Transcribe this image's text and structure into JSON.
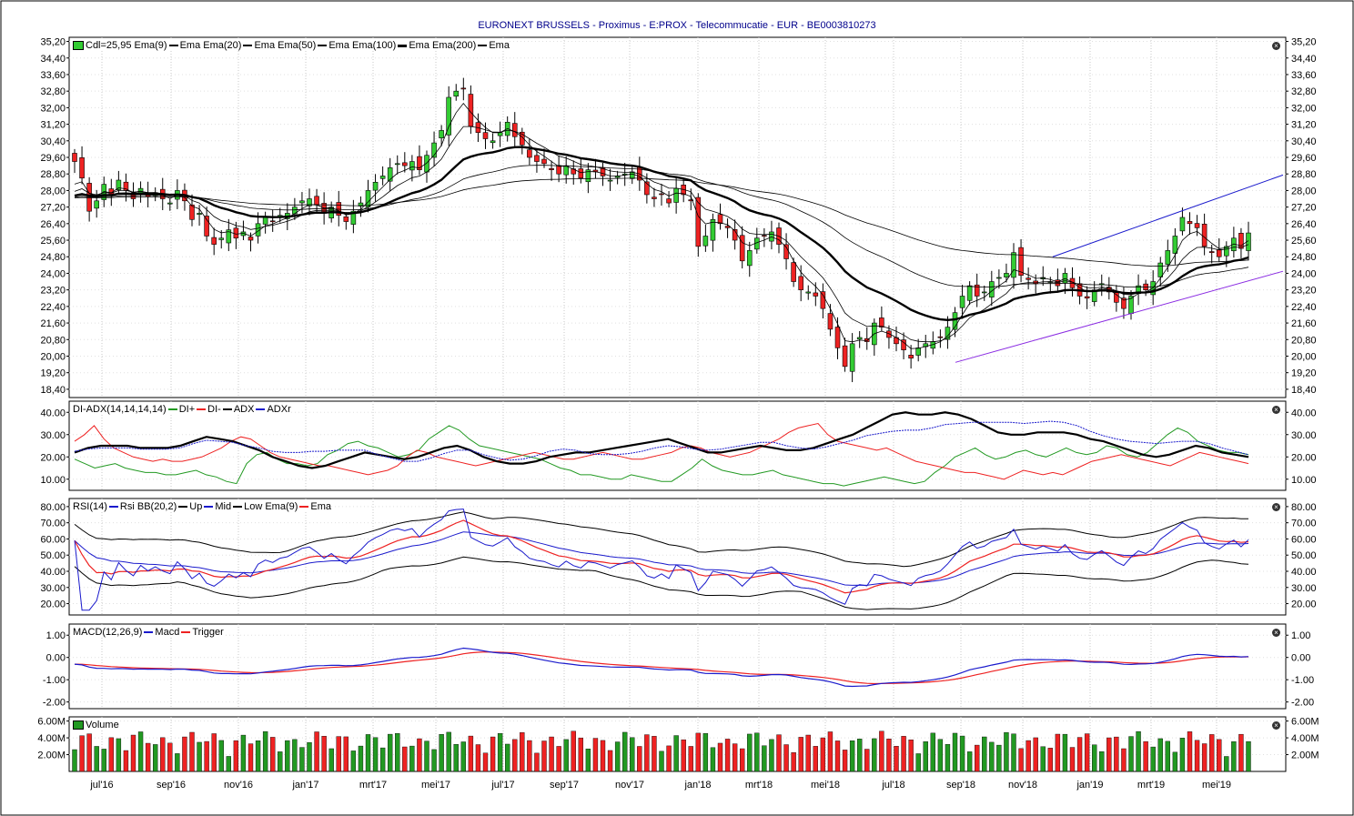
{
  "title": "EURONEXT BRUSSELS - Proximus - E:PROX - Telecommucatie - EUR - BE0003810273",
  "months": [
    "jul'16",
    "sep'16",
    "nov'16",
    "jan'17",
    "mrt'17",
    "mei'17",
    "jul'17",
    "sep'17",
    "nov'17",
    "jan'18",
    "mrt'18",
    "mei'18",
    "jul'18",
    "sep'18",
    "nov'18",
    "jan'19",
    "mrt'19",
    "mei'19"
  ],
  "legends": {
    "price": {
      "cdl": "Cdl=25,95",
      "items": [
        "Ema(9)",
        "Ema",
        "Ema(20)",
        "Ema",
        "Ema(50)",
        "Ema",
        "Ema(100)",
        "Ema",
        "Ema(200)",
        "Ema"
      ]
    },
    "adx": {
      "name": "DI-ADX(14,14,14,14)",
      "items": [
        "DI+",
        "DI-",
        "ADX",
        "ADXr"
      ]
    },
    "rsi": {
      "name": "RSI(14)",
      "items": [
        "Rsi",
        "BB(20,2)",
        "Up",
        "Mid",
        "Low",
        "Ema(9)",
        "Ema"
      ]
    },
    "macd": {
      "name": "MACD(12,26,9)",
      "items": [
        "Macd",
        "Trigger"
      ]
    },
    "volume": {
      "name": "Volume"
    }
  },
  "axes": {
    "price": [
      "35,20",
      "34,40",
      "33,60",
      "32,80",
      "32,00",
      "31,20",
      "30,40",
      "29,60",
      "28,80",
      "28,00",
      "27,20",
      "26,40",
      "25,60",
      "24,80",
      "24,00",
      "23,20",
      "22,40",
      "21,60",
      "20,80",
      "20,00",
      "19,20",
      "18,40"
    ],
    "adx": [
      "40.00",
      "30.00",
      "20.00",
      "10.00"
    ],
    "rsi": [
      "80.00",
      "70.00",
      "60.00",
      "50.00",
      "40.00",
      "30.00",
      "20.00"
    ],
    "macd": [
      "1.00",
      "0.00",
      "-1.00",
      "-2.00"
    ],
    "volume": [
      "6.00M",
      "4.00M",
      "2.00M"
    ]
  },
  "colors": {
    "up": "#33cc33",
    "down": "#ee2222",
    "blue": "#1a1acc",
    "purple": "#8a2be2",
    "green": "#229922",
    "red": "#ee2222",
    "black": "#000000",
    "title": "#00008b"
  },
  "chart_data": [
    {
      "type": "candlestick",
      "panel": "price",
      "ylim": [
        18.0,
        35.4
      ],
      "x_weeks": "weekly candles, jul 2016 - mei 2019",
      "close": [
        29.4,
        28.6,
        27.0,
        27.5,
        28.3,
        27.8,
        28.5,
        28.0,
        27.6,
        28.1,
        27.7,
        27.9,
        27.6,
        27.4,
        28.0,
        27.5,
        26.6,
        26.9,
        25.8,
        25.4,
        25.7,
        26.1,
        25.7,
        26.0,
        25.6,
        26.4,
        26.7,
        26.5,
        26.8,
        26.9,
        27.2,
        27.5,
        27.6,
        27.3,
        26.9,
        27.2,
        26.8,
        26.5,
        27.0,
        27.4,
        28.0,
        28.4,
        28.7,
        29.1,
        29.3,
        29.2,
        29.4,
        29.0,
        29.7,
        30.3,
        30.9,
        32.5,
        32.8,
        32.9,
        31.1,
        30.8,
        30.5,
        30.4,
        30.8,
        31.3,
        30.6,
        30.2,
        29.6,
        29.4,
        29.3,
        29.0,
        28.8,
        29.2,
        28.8,
        28.6,
        29.0,
        28.9,
        28.7,
        28.5,
        28.7,
        28.8,
        28.9,
        28.5,
        27.8,
        27.6,
        27.8,
        27.4,
        28.1,
        27.8,
        27.5,
        25.3,
        25.8,
        26.6,
        26.4,
        26.2,
        25.6,
        24.6,
        25.1,
        25.7,
        25.8,
        26.0,
        25.4,
        24.7,
        23.6,
        23.2,
        23.1,
        22.9,
        22.3,
        21.3,
        20.4,
        19.5,
        20.6,
        20.9,
        20.7,
        21.6,
        21.4,
        20.9,
        20.6,
        20.3,
        19.9,
        20.4,
        20.6,
        20.7,
        20.9,
        21.4,
        22.1,
        22.9,
        23.4,
        22.9,
        23.1,
        23.6,
        23.8,
        24.0,
        25.0,
        23.9,
        23.7,
        23.5,
        23.8,
        23.6,
        23.4,
        24.0,
        23.3,
        22.9,
        22.8,
        23.2,
        23.5,
        23.1,
        22.6,
        22.3,
        22.9,
        23.4,
        23.2,
        23.6,
        24.5,
        25.1,
        25.8,
        26.7,
        26.4,
        26.2,
        25.3,
        25.0,
        24.8,
        25.3,
        25.7,
        25.2,
        25.95
      ],
      "ema": [
        {
          "name": "Ema(9)",
          "color": "#000000",
          "width": 0.8
        },
        {
          "name": "Ema(20)",
          "color": "#000000",
          "width": 0.8
        },
        {
          "name": "Ema(50)",
          "color": "#000000",
          "width": 2.4
        },
        {
          "name": "Ema(100)",
          "color": "#000000",
          "width": 0.8
        },
        {
          "name": "Ema(200)",
          "color": "#000000",
          "width": 0.8
        }
      ],
      "trendlines": [
        {
          "color": "#1a1acc",
          "from": [
            1157,
            24.8
          ],
          "to": [
            1410,
            28.75
          ]
        },
        {
          "color": "#8a2be2",
          "from": [
            1050,
            19.7
          ],
          "to": [
            1410,
            24.1
          ]
        }
      ]
    },
    {
      "type": "line",
      "panel": "adx",
      "ylim": [
        5,
        45
      ],
      "series": [
        {
          "name": "DI+",
          "color": "#229922",
          "values": [
            19,
            17,
            15,
            16,
            17,
            15,
            14,
            13,
            13,
            12,
            12,
            13,
            14,
            12,
            11,
            9,
            8,
            17,
            21,
            22,
            19,
            17,
            17,
            16,
            17,
            21,
            23,
            26,
            27,
            25,
            24,
            22,
            20,
            21,
            23,
            28,
            31,
            34,
            32,
            28,
            25,
            24,
            23,
            22,
            21,
            20,
            19,
            17,
            15,
            14,
            12,
            12,
            11,
            10,
            10,
            12,
            11,
            10,
            9,
            9,
            12,
            15,
            19,
            16,
            14,
            13,
            12,
            12,
            13,
            14,
            12,
            11,
            10,
            9,
            8,
            8,
            7,
            8,
            9,
            10,
            11,
            10,
            9,
            8,
            9,
            13,
            16,
            20,
            22,
            24,
            21,
            19,
            20,
            22,
            23,
            21,
            20,
            22,
            24,
            22,
            21,
            22,
            25,
            24,
            21,
            20,
            22,
            26,
            30,
            33,
            31,
            27,
            25,
            23,
            22,
            22,
            21
          ]
        },
        {
          "name": "DI-",
          "color": "#ee2222",
          "values": [
            27,
            30,
            34,
            28,
            24,
            22,
            20,
            19,
            18,
            19,
            18,
            18,
            19,
            20,
            22,
            24,
            27,
            29,
            28,
            25,
            22,
            20,
            19,
            18,
            17,
            16,
            16,
            15,
            14,
            13,
            12,
            13,
            14,
            16,
            20,
            23,
            22,
            20,
            19,
            18,
            17,
            16,
            17,
            18,
            19,
            20,
            21,
            22,
            21,
            20,
            19,
            19,
            20,
            21,
            22,
            21,
            20,
            19,
            19,
            20,
            21,
            22,
            24,
            25,
            24,
            22,
            21,
            20,
            21,
            22,
            24,
            26,
            28,
            31,
            33,
            34,
            35,
            30,
            27,
            26,
            25,
            24,
            23,
            24,
            22,
            20,
            18,
            17,
            16,
            15,
            14,
            13,
            13,
            12,
            11,
            10,
            12,
            14,
            13,
            12,
            13,
            12,
            14,
            16,
            18,
            19,
            20,
            21,
            20,
            19,
            18,
            17,
            16,
            18,
            20,
            22,
            21,
            20,
            19,
            18,
            17
          ]
        }
      ]
    },
    {
      "type": "line",
      "panel": "rsi",
      "ylim": [
        13,
        85
      ],
      "series": [
        {
          "name": "Rsi",
          "color": "#1a1acc"
        },
        {
          "name": "Up",
          "color": "#000000"
        },
        {
          "name": "Mid",
          "color": "#1a1acc"
        },
        {
          "name": "Low",
          "color": "#000000"
        },
        {
          "name": "Ema(9)",
          "color": "#ee2222"
        }
      ]
    },
    {
      "type": "line",
      "panel": "macd",
      "ylim": [
        -2.3,
        1.5
      ],
      "series": [
        {
          "name": "Macd",
          "color": "#1a1acc"
        },
        {
          "name": "Trigger",
          "color": "#ee2222"
        }
      ]
    },
    {
      "type": "bar",
      "panel": "volume",
      "ylim": [
        0,
        6.5
      ],
      "unit": "M",
      "series": [
        {
          "name": "Volume"
        }
      ]
    }
  ]
}
